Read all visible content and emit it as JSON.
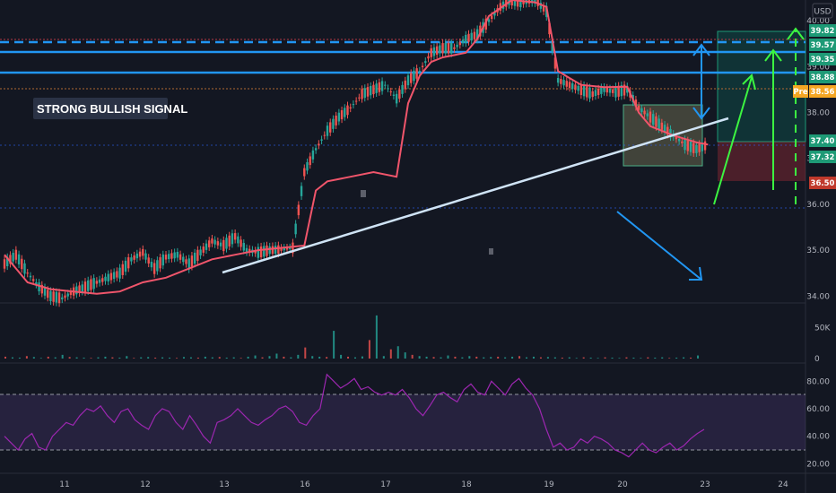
{
  "chart_data": {
    "type": "candlestick",
    "currency": "USD",
    "annotation": "STRONG BULLISH SIGNAL",
    "price_axis": {
      "range": [
        33.85,
        40.45
      ],
      "ticks": [
        "40.00",
        "39.00",
        "38.00",
        "37.00",
        "36.00",
        "35.00",
        "34.00"
      ]
    },
    "volume_axis": {
      "range": [
        0,
        80000
      ],
      "ticks": [
        "50K",
        "0"
      ]
    },
    "rsi_axis": {
      "range": [
        15,
        90
      ],
      "ticks": [
        "80.00",
        "60.00",
        "40.00",
        "20.00"
      ],
      "upper_band": 70,
      "lower_band": 30
    },
    "date_ticks": [
      "11",
      "12",
      "13",
      "16",
      "17",
      "18",
      "19",
      "20",
      "23",
      "24"
    ],
    "price_badges": [
      {
        "label": "39.82",
        "value": 39.82,
        "color": "#1e9a76"
      },
      {
        "label": "39.57",
        "value": 39.57,
        "color": "#1e9a76"
      },
      {
        "label": "39.35",
        "value": 39.35,
        "color": "#1e9a76"
      },
      {
        "label": "38.88",
        "value": 38.88,
        "color": "#1e9a76"
      },
      {
        "label": "38.56",
        "value": 38.56,
        "color": "#f5a623",
        "prefix": "Pre"
      },
      {
        "label": "37.40",
        "value": 37.4,
        "color": "#1e9a76"
      },
      {
        "label": "37.32",
        "value": 37.32,
        "color": "#1e9a76"
      },
      {
        "label": "36.50",
        "value": 36.5,
        "color": "#c0392b"
      }
    ],
    "resistance_levels": [
      {
        "value": 39.57,
        "style": "dashed"
      },
      {
        "value": 39.35,
        "style": "solid"
      },
      {
        "value": 38.88,
        "style": "solid"
      }
    ],
    "price_path": [
      [
        0,
        34.7
      ],
      [
        0.5,
        34.9
      ],
      [
        1,
        34.5
      ],
      [
        1.5,
        34.2
      ],
      [
        2,
        34.0
      ],
      [
        2.5,
        33.95
      ],
      [
        3,
        34.1
      ],
      [
        3.5,
        34.2
      ],
      [
        4,
        34.3
      ],
      [
        4.5,
        34.4
      ],
      [
        5,
        34.5
      ],
      [
        5.5,
        34.8
      ],
      [
        6,
        34.95
      ],
      [
        6.5,
        34.6
      ],
      [
        7,
        34.85
      ],
      [
        7.5,
        34.9
      ],
      [
        8,
        34.7
      ],
      [
        8.5,
        34.95
      ],
      [
        9,
        35.2
      ],
      [
        9.5,
        35.1
      ],
      [
        10,
        35.3
      ],
      [
        10.5,
        35.0
      ],
      [
        11,
        34.95
      ],
      [
        11.5,
        35.0
      ],
      [
        12,
        35.02
      ],
      [
        12.5,
        35.05
      ],
      [
        13,
        36.7
      ],
      [
        13.5,
        37.2
      ],
      [
        14,
        37.6
      ],
      [
        14.5,
        37.9
      ],
      [
        15,
        38.1
      ],
      [
        15.5,
        38.4
      ],
      [
        16,
        38.5
      ],
      [
        16.5,
        38.6
      ],
      [
        17,
        38.3
      ],
      [
        17.5,
        38.7
      ],
      [
        18,
        38.9
      ],
      [
        18.5,
        39.3
      ],
      [
        19,
        39.4
      ],
      [
        19.5,
        39.4
      ],
      [
        20,
        39.6
      ],
      [
        20.5,
        39.7
      ],
      [
        21,
        40.0
      ],
      [
        21.5,
        40.3
      ],
      [
        22,
        40.45
      ],
      [
        22.5,
        40.4
      ],
      [
        23,
        40.45
      ],
      [
        23.5,
        40.2
      ],
      [
        24,
        38.7
      ],
      [
        24.5,
        38.6
      ],
      [
        25,
        38.5
      ],
      [
        25.5,
        38.4
      ],
      [
        26,
        38.5
      ],
      [
        26.5,
        38.45
      ],
      [
        27,
        38.5
      ],
      [
        27.5,
        38.1
      ],
      [
        28,
        37.9
      ],
      [
        28.5,
        37.7
      ],
      [
        29,
        37.5
      ],
      [
        29.5,
        37.3
      ],
      [
        30,
        37.2
      ],
      [
        30.5,
        37.3
      ]
    ],
    "moving_average": [
      [
        0,
        34.9
      ],
      [
        0.5,
        34.6
      ],
      [
        1,
        34.3
      ],
      [
        2,
        34.15
      ],
      [
        3,
        34.1
      ],
      [
        4,
        34.05
      ],
      [
        5,
        34.1
      ],
      [
        6,
        34.3
      ],
      [
        7,
        34.4
      ],
      [
        8,
        34.6
      ],
      [
        9,
        34.8
      ],
      [
        10,
        34.9
      ],
      [
        11,
        35.0
      ],
      [
        12,
        35.05
      ],
      [
        13,
        35.1
      ],
      [
        13.5,
        36.3
      ],
      [
        14,
        36.5
      ],
      [
        15,
        36.6
      ],
      [
        16,
        36.7
      ],
      [
        17,
        36.6
      ],
      [
        17.5,
        38.2
      ],
      [
        18,
        38.8
      ],
      [
        18.5,
        39.1
      ],
      [
        19,
        39.2
      ],
      [
        20,
        39.3
      ],
      [
        20.5,
        39.6
      ],
      [
        21,
        40.1
      ],
      [
        22,
        40.45
      ],
      [
        23,
        40.4
      ],
      [
        23.5,
        40.3
      ],
      [
        24,
        38.9
      ],
      [
        24.5,
        38.75
      ],
      [
        25,
        38.6
      ],
      [
        26,
        38.55
      ],
      [
        27,
        38.56
      ],
      [
        27.5,
        38.0
      ],
      [
        28,
        37.7
      ],
      [
        29,
        37.5
      ],
      [
        30,
        37.35
      ],
      [
        30.5,
        37.3
      ]
    ],
    "volume_bars": [
      3000,
      2000,
      1500,
      4000,
      2500,
      1000,
      3000,
      2000,
      6000,
      2500,
      2000,
      1500,
      1000,
      2000,
      3000,
      2000,
      1500,
      4000,
      1000,
      2000,
      2500,
      1500,
      2000,
      1500,
      1000,
      2500,
      2000,
      1500,
      3000,
      2000,
      2500,
      1500,
      2000,
      1000,
      3000,
      5000,
      2000,
      4000,
      8000,
      3000,
      2000,
      6000,
      18000,
      4000,
      3000,
      2500,
      45000,
      6000,
      3000,
      2000,
      3500,
      30000,
      70000,
      4000,
      15000,
      20000,
      10000,
      6000,
      4000,
      3000,
      2500,
      2000,
      5000,
      3000,
      2000,
      4000,
      3000,
      2000,
      2500,
      3000,
      2000,
      3000,
      4000,
      2000,
      3000,
      2000,
      2500,
      2000,
      1500,
      2000,
      1000,
      2000,
      1500,
      1000,
      2000,
      1500,
      1000,
      2000,
      1500,
      1000,
      2000,
      1500,
      2000,
      1000,
      1500,
      2000,
      1500,
      5000
    ],
    "rsi": [
      40,
      35,
      30,
      38,
      42,
      32,
      30,
      40,
      45,
      50,
      48,
      55,
      60,
      58,
      62,
      55,
      50,
      58,
      60,
      52,
      48,
      45,
      55,
      60,
      58,
      50,
      45,
      55,
      48,
      40,
      35,
      50,
      52,
      55,
      60,
      55,
      50,
      48,
      52,
      55,
      60,
      62,
      58,
      50,
      48,
      55,
      60,
      85,
      80,
      75,
      78,
      82,
      74,
      76,
      72,
      70,
      72,
      70,
      74,
      68,
      60,
      55,
      62,
      70,
      72,
      68,
      65,
      74,
      78,
      72,
      70,
      80,
      75,
      70,
      78,
      82,
      75,
      70,
      60,
      45,
      32,
      35,
      30,
      32,
      38,
      35,
      40,
      38,
      35,
      30,
      28,
      25,
      30,
      35,
      30,
      28,
      32,
      35,
      30,
      33,
      38,
      42,
      45
    ],
    "trendline": {
      "from": [
        12.5,
        34.55
      ],
      "to": [
        31.5,
        37.85
      ]
    },
    "down_arrow": {
      "from": [
        29.3,
        36.0
      ],
      "to": [
        32.6,
        34.85
      ]
    },
    "target_zone": {
      "top": 39.82,
      "bottom": 37.4
    },
    "stop_zone": {
      "top": 37.4,
      "bottom": 36.5
    },
    "consolidation_box": {
      "top": 38.2,
      "bottom": 36.9
    }
  }
}
